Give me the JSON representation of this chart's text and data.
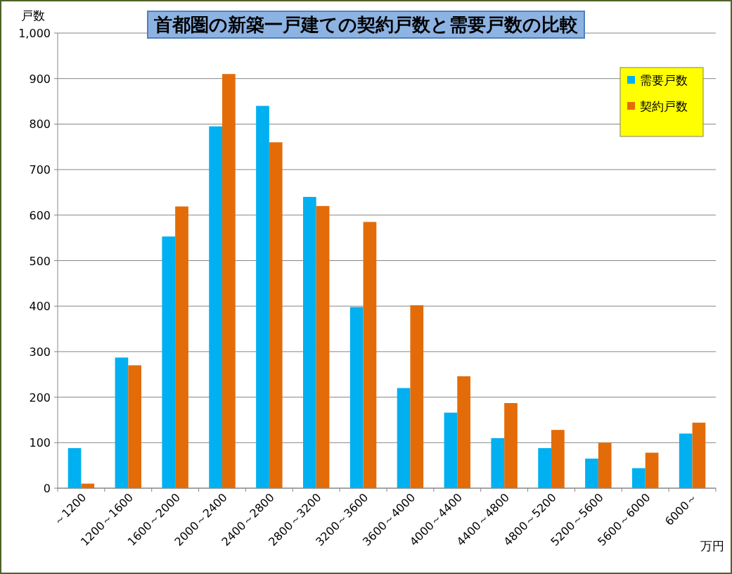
{
  "chart_data": {
    "type": "bar",
    "title": "首都圏の新築一戸建ての契約戸数と需要戸数の比較",
    "xlabel": "万円",
    "ylabel": "戸数",
    "categories": [
      "～1200",
      "1200～1600",
      "1600～2000",
      "2000～2400",
      "2400～2800",
      "2800～3200",
      "3200～3600",
      "3600～4000",
      "4000～4400",
      "4400～4800",
      "4800～5200",
      "5200～5600",
      "5600～6000",
      "6000～"
    ],
    "series": [
      {
        "name": "需要戸数",
        "color": "#00b0f0",
        "values": [
          88,
          287,
          553,
          795,
          840,
          640,
          398,
          220,
          166,
          110,
          88,
          65,
          44,
          120
        ]
      },
      {
        "name": "契約戸数",
        "color": "#e36c09",
        "values": [
          10,
          270,
          619,
          910,
          760,
          620,
          585,
          402,
          246,
          187,
          128,
          100,
          78,
          144
        ]
      }
    ],
    "ylim": [
      0,
      1000
    ],
    "yticks": [
      0,
      100,
      200,
      300,
      400,
      500,
      600,
      700,
      800,
      900,
      {
        "value": 1000,
        "label": "1,000"
      }
    ],
    "grid": "y",
    "legend": "top right"
  }
}
